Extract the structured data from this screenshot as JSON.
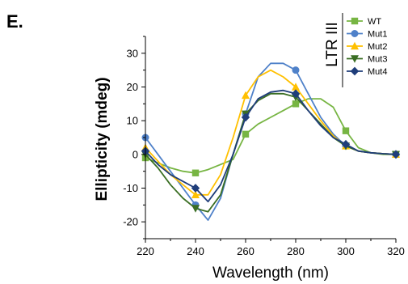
{
  "panel_label": "E.",
  "chart_data": {
    "type": "line",
    "xlabel": "Wavelength (nm)",
    "ylabel": "Ellipticity (mdeg)",
    "xlim": [
      220,
      320
    ],
    "ylim": [
      -25,
      35
    ],
    "xticks": [
      220,
      240,
      260,
      280,
      300,
      320
    ],
    "yticks": [
      -20,
      -10,
      0,
      10,
      20,
      30
    ],
    "legend_title": "LTR III",
    "legend_position": "top-right",
    "series": [
      {
        "name": "WT",
        "color": "#77b543",
        "marker": "square",
        "x": [
          220,
          225,
          230,
          235,
          240,
          245,
          250,
          255,
          260,
          265,
          270,
          275,
          280,
          285,
          290,
          295,
          300,
          305,
          310,
          315,
          320
        ],
        "y": [
          -1,
          -2.5,
          -4,
          -5,
          -5.5,
          -4.5,
          -3,
          -1.5,
          6,
          9,
          11,
          13,
          15,
          16.5,
          16.5,
          14,
          7,
          2,
          0.5,
          0,
          0
        ],
        "marker_x": [
          220,
          240,
          260,
          280,
          300,
          320
        ],
        "marker_y": [
          -1,
          -5.5,
          6,
          15,
          7,
          0
        ]
      },
      {
        "name": "Mut1",
        "color": "#4f81c9",
        "marker": "circle",
        "x": [
          220,
          225,
          230,
          235,
          240,
          245,
          250,
          255,
          260,
          265,
          270,
          275,
          280,
          285,
          290,
          295,
          300,
          305,
          310,
          315,
          320
        ],
        "y": [
          5,
          0,
          -5,
          -10,
          -15,
          -19.5,
          -13,
          0,
          12,
          23,
          27,
          27,
          25,
          18,
          11,
          6,
          2.5,
          1,
          0.5,
          0.2,
          0
        ],
        "marker_x": [
          220,
          240,
          260,
          280,
          300,
          320
        ],
        "marker_y": [
          5,
          -15,
          12,
          25,
          2.5,
          0
        ]
      },
      {
        "name": "Mut2",
        "color": "#ffc000",
        "marker": "triangle",
        "x": [
          220,
          225,
          230,
          235,
          240,
          245,
          250,
          255,
          260,
          265,
          270,
          275,
          280,
          285,
          290,
          295,
          300,
          305,
          310,
          315,
          320
        ],
        "y": [
          2,
          -2,
          -6,
          -9,
          -12,
          -12,
          -6,
          5,
          17.5,
          23,
          25,
          23,
          20,
          15,
          10,
          5.5,
          2.5,
          1,
          0.5,
          0.2,
          0
        ],
        "marker_x": [
          220,
          240,
          260,
          280,
          300,
          320
        ],
        "marker_y": [
          2,
          -12,
          17.5,
          20,
          2.5,
          0
        ]
      },
      {
        "name": "Mut3",
        "color": "#3a6e23",
        "marker": "triangle-down",
        "x": [
          220,
          225,
          230,
          235,
          240,
          245,
          250,
          255,
          260,
          265,
          270,
          275,
          280,
          285,
          290,
          295,
          300,
          305,
          310,
          315,
          320
        ],
        "y": [
          0,
          -4,
          -9,
          -13,
          -16,
          -17,
          -12,
          0,
          12,
          16,
          18,
          18,
          17,
          13,
          9,
          5,
          2.5,
          1,
          0.5,
          0.2,
          0
        ],
        "marker_x": [
          220,
          240,
          260,
          280,
          300,
          320
        ],
        "marker_y": [
          0,
          -16,
          12,
          17,
          2.5,
          0
        ]
      },
      {
        "name": "Mut4",
        "color": "#1f3d7a",
        "marker": "diamond",
        "x": [
          220,
          225,
          230,
          235,
          240,
          245,
          250,
          255,
          260,
          265,
          270,
          275,
          280,
          285,
          290,
          295,
          300,
          305,
          310,
          315,
          320
        ],
        "y": [
          1,
          -3,
          -6,
          -8,
          -10,
          -14,
          -9,
          0,
          11,
          16.5,
          18.5,
          19,
          18,
          13,
          8.5,
          5,
          3,
          1,
          0.5,
          0.2,
          0
        ],
        "marker_x": [
          220,
          240,
          260,
          280,
          300,
          320
        ],
        "marker_y": [
          1,
          -10,
          11,
          18,
          3,
          0
        ]
      }
    ]
  }
}
